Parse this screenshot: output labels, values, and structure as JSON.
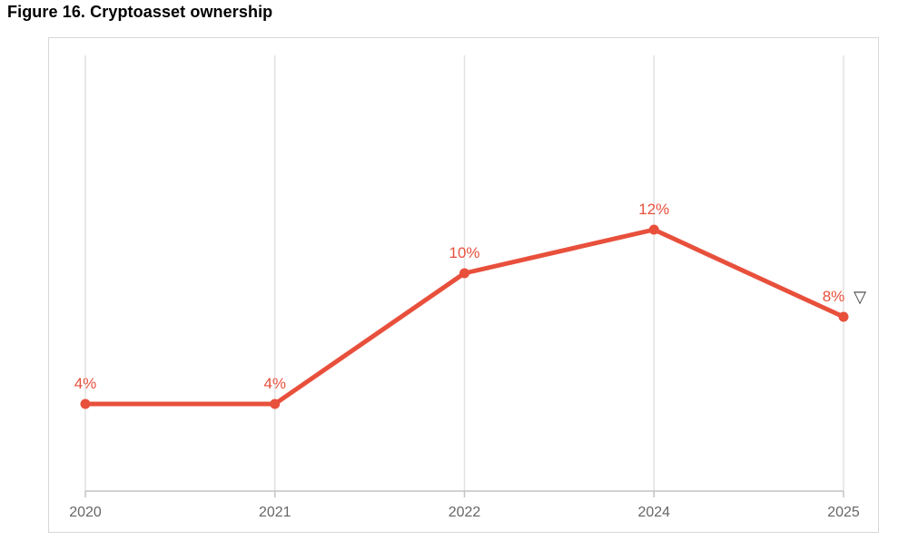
{
  "figure": {
    "title": "Figure 16. Cryptoasset ownership"
  },
  "chart_data": {
    "type": "line",
    "title": "Figure 16. Cryptoasset ownership",
    "categories": [
      "2020",
      "2021",
      "2022",
      "2024",
      "2025"
    ],
    "values": [
      4,
      4,
      10,
      12,
      8
    ],
    "point_labels": [
      "4%",
      "4%",
      "10%",
      "12%",
      "8%"
    ],
    "annotation": {
      "text": "▽",
      "point_index": 4,
      "meaning": "decrease-indicator"
    },
    "xlabel": "",
    "ylabel": "",
    "ylim": [
      0,
      20
    ],
    "grid": "vertical",
    "legend": "none",
    "colors": {
      "line": "#E8503C",
      "marker": "#E8503C",
      "point_label": "#E8503C",
      "gridline": "#E2E2E2",
      "axis_line": "#C4C4C4",
      "tick_label": "#666666",
      "annotation": "#3C3C3C"
    }
  }
}
